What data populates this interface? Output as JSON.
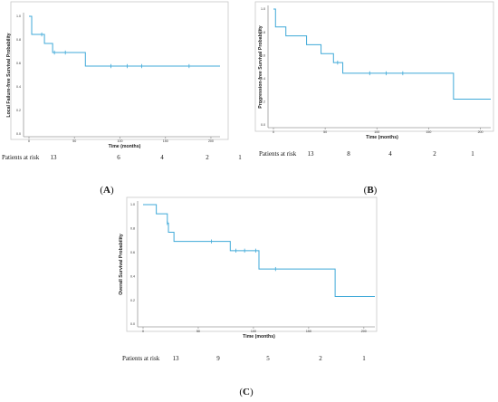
{
  "chart_data": [
    {
      "type": "line",
      "panel": "A",
      "ylabel": "Local Failure-free Survival Probability",
      "xlabel": "Time (months)",
      "xlim": [
        0,
        210
      ],
      "ylim": [
        0,
        1.0
      ],
      "x_ticks": [
        0,
        50,
        100,
        150,
        200
      ],
      "y_ticks": [
        "0.0",
        "0.2",
        "0.4",
        "0.6",
        "0.8",
        "1.0"
      ],
      "steps": [
        [
          0,
          1.0
        ],
        [
          3,
          0.846
        ],
        [
          17,
          0.769
        ],
        [
          26,
          0.692
        ],
        [
          62,
          0.577
        ],
        [
          210,
          0.577
        ]
      ],
      "censored": [
        [
          14,
          0.846
        ],
        [
          28,
          0.692
        ],
        [
          40,
          0.692
        ],
        [
          90,
          0.577
        ],
        [
          108,
          0.577
        ],
        [
          124,
          0.577
        ],
        [
          176,
          0.577
        ]
      ],
      "risk_label": "Patients at risk",
      "risk_counts": [
        "13",
        "6",
        "4",
        "2",
        "1"
      ]
    },
    {
      "type": "line",
      "panel": "B",
      "ylabel": "Progression-free Survival Probability",
      "xlabel": "Time (months)",
      "xlim": [
        0,
        210
      ],
      "ylim": [
        0,
        1.0
      ],
      "x_ticks": [
        0,
        50,
        100,
        150,
        200
      ],
      "y_ticks": [
        "0.0",
        "0.2",
        "0.4",
        "0.6",
        "0.8",
        "1.0"
      ],
      "steps": [
        [
          0,
          1.0
        ],
        [
          2,
          0.846
        ],
        [
          12,
          0.769
        ],
        [
          32,
          0.692
        ],
        [
          46,
          0.615
        ],
        [
          58,
          0.538
        ],
        [
          67,
          0.446
        ],
        [
          174,
          0.223
        ],
        [
          210,
          0.223
        ]
      ],
      "censored": [
        [
          62,
          0.538
        ],
        [
          93,
          0.446
        ],
        [
          109,
          0.446
        ],
        [
          125,
          0.446
        ]
      ],
      "risk_label": "Patients at risk",
      "risk_counts": [
        "13",
        "8",
        "4",
        "2",
        "1"
      ]
    },
    {
      "type": "line",
      "panel": "C",
      "ylabel": "Overall Survival Probability",
      "xlabel": "Time (months)",
      "xlim": [
        0,
        210
      ],
      "ylim": [
        0,
        1.0
      ],
      "x_ticks": [
        0,
        50,
        100,
        150,
        200
      ],
      "y_ticks": [
        "0.0",
        "0.2",
        "0.4",
        "0.6",
        "0.8",
        "1.0"
      ],
      "steps": [
        [
          0,
          1.0
        ],
        [
          12,
          0.923
        ],
        [
          22,
          0.846
        ],
        [
          23,
          0.769
        ],
        [
          28,
          0.692
        ],
        [
          79,
          0.615
        ],
        [
          105,
          0.461
        ],
        [
          174,
          0.231
        ],
        [
          210,
          0.231
        ]
      ],
      "censored": [
        [
          22,
          0.846
        ],
        [
          62,
          0.692
        ],
        [
          84,
          0.615
        ],
        [
          92,
          0.615
        ],
        [
          102,
          0.615
        ],
        [
          120,
          0.461
        ]
      ],
      "risk_label": "Patients at risk",
      "risk_counts": [
        "13",
        "9",
        "5",
        "2",
        "1"
      ]
    }
  ],
  "panel_labels": [
    "A",
    "B",
    "C"
  ],
  "colors": {
    "curve": "#3fa9d8",
    "axis": "#9a9a9a"
  }
}
